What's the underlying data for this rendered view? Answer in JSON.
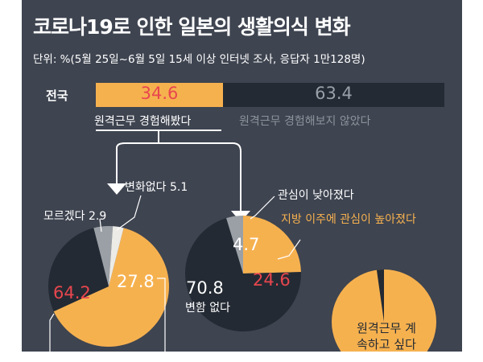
{
  "header": {
    "title": "코로나19로 인한 일본의 생활의식 변화",
    "subtitle": "단위: %(5월 25일~6월 5일 15세 이상 인터넷 조사, 응답자 1만128명)"
  },
  "colors": {
    "background": "#3e4450",
    "dark": "#232a33",
    "accent": "#f6b14f",
    "highlight": "#e8464e",
    "muted": "#8d939b",
    "light": "#ecebe6",
    "gray": "#9ba0a6"
  },
  "labels": {
    "remote_yes": "원격근무 경험해봤다",
    "remote_no": "원격근무 경험해보지 않았다",
    "dont_know": "모르겠다",
    "no_change": "변화없다",
    "interest_lower": "관심이 낮아졌다",
    "interest_higher": "지방 이주에 관심이 높아졌다",
    "no_change_2": "변함 없다",
    "continue_remote": "원격근무 계속하고 싶다"
  },
  "chart_data": [
    {
      "type": "bar",
      "stacked": true,
      "orientation": "horizontal",
      "categories": [
        "전국"
      ],
      "series": [
        {
          "name": "원격근무 경험해봤다",
          "values": [
            34.6
          ]
        },
        {
          "name": "원격근무 경험해보지 않았다",
          "values": [
            63.4
          ]
        }
      ]
    },
    {
      "type": "pie",
      "slices": [
        {
          "label": "",
          "value": 64.2
        },
        {
          "label": "",
          "value": 27.8
        },
        {
          "label": "변화없다",
          "value": 5.1
        },
        {
          "label": "모르겠다",
          "value": 2.9
        }
      ]
    },
    {
      "type": "pie",
      "slices": [
        {
          "label": "지방 이주에 관심이 높아졌다",
          "value": 24.6
        },
        {
          "label": "변함 없다",
          "value": 70.8
        },
        {
          "label": "관심이 낮아졌다",
          "value": 4.7
        }
      ]
    },
    {
      "type": "pie",
      "slices": [
        {
          "label": "원격근무 계속하고 싶다",
          "value": null
        }
      ]
    }
  ]
}
